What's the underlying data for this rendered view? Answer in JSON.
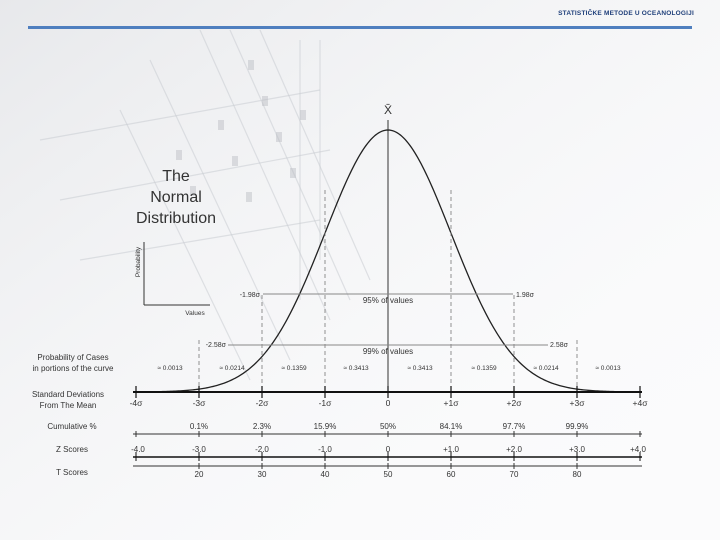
{
  "header": {
    "title": "STATISTIČKE METODE U OCEANOLOGIJI"
  },
  "diagram": {
    "title_lines": [
      "The",
      "Normal",
      "Distribution"
    ],
    "mean_symbol": "X̄",
    "mini_axes": {
      "y_label": "Probability",
      "x_label": "Values"
    },
    "left_labels": {
      "probability_of_cases": [
        "Probability of Cases",
        "in portions of the curve"
      ],
      "standard_deviations": [
        "Standard Deviations",
        "From The Mean"
      ],
      "cumulative": "Cumulative %",
      "z_scores": "Z Scores",
      "t_scores": "T Scores"
    },
    "range_95": {
      "left": "-1.98σ",
      "right": "1.98σ",
      "label": "95% of values"
    },
    "range_99": {
      "left": "-2.58σ",
      "right": "2.58σ",
      "label": "99% of values"
    },
    "portions": [
      "≈ 0.0013",
      "≈ 0.0214",
      "≈ 0.1359",
      "≈ 0.3413",
      "≈ 0.3413",
      "≈ 0.1359",
      "≈ 0.0214",
      "≈ 0.0013"
    ],
    "sigma_labels": [
      "-4σ",
      "-3σ",
      "-2σ",
      "-1σ",
      "0",
      "+1σ",
      "+2σ",
      "+3σ",
      "+4σ"
    ],
    "cumulative_labels": [
      "0.1%",
      "2.3%",
      "15.9%",
      "50%",
      "84.1%",
      "97.7%",
      "99.9%"
    ],
    "z_labels": [
      "-4.0",
      "-3.0",
      "-2.0",
      "-1.0",
      "0",
      "+1.0",
      "+2.0",
      "+3.0",
      "+4.0"
    ],
    "t_labels": [
      "20",
      "30",
      "40",
      "50",
      "60",
      "70",
      "80"
    ]
  }
}
